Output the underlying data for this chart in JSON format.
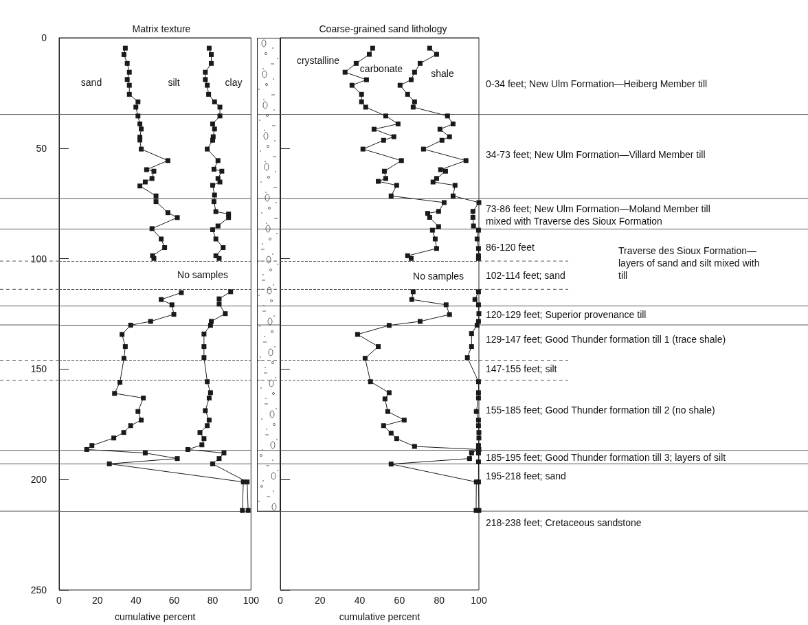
{
  "chart_data": [
    {
      "type": "line",
      "title": "Matrix texture",
      "xlabel": "cumulative percent",
      "xlim": [
        0,
        100
      ],
      "xticks": [
        0,
        20,
        40,
        60,
        80,
        100
      ],
      "ylim": [
        250,
        0
      ],
      "yticks": [
        0,
        50,
        100,
        150,
        200,
        250
      ],
      "marker": "square",
      "series": [
        {
          "color": "#1a1a1a",
          "x": [
            34.5,
            33.8,
            35.5,
            36.6,
            35.5,
            36.6,
            36.6,
            41.1,
            40.0,
            41.1,
            42.1,
            42.8,
            42.1,
            42.1,
            42.8,
            56.7,
            45.6,
            49.4,
            48.4,
            44.9,
            42.1,
            50.5,
            50.5,
            56.7,
            61.6,
            48.4,
            53.2,
            55.0,
            48.7,
            49.4,
            null,
            63.7,
            53.2,
            58.8,
            59.8,
            47.7,
            37.3,
            32.8,
            34.5,
            33.8,
            31.7,
            28.9,
            43.9,
            41.1,
            42.8,
            37.3,
            33.7,
            28.5,
            17.1,
            14.4,
            44.9,
            61.6,
            26.2,
            96.0,
            95.5
          ],
          "values": [
            4.7,
            7.6,
            11.6,
            15.6,
            18.9,
            21.5,
            25.6,
            29.0,
            31.4,
            35.4,
            39.0,
            41.3,
            45.0,
            46.3,
            50.4,
            55.6,
            59.7,
            60.4,
            63.7,
            65.3,
            67.1,
            71.6,
            74.2,
            79.2,
            81.4,
            86.4,
            91.1,
            95.0,
            98.7,
            99.9,
            null,
            115.4,
            118.5,
            120.9,
            125.2,
            128.4,
            130.1,
            134.3,
            139.8,
            145.1,
            156.0,
            161.0,
            163.1,
            169.2,
            173.1,
            175.6,
            178.7,
            181.2,
            184.6,
            186.4,
            188.0,
            190.5,
            192.9,
            201.1,
            214
          ]
        },
        {
          "color": "#1a1a1a",
          "x": [
            78.2,
            79.3,
            79.3,
            76.2,
            76.2,
            77.2,
            77.9,
            81.0,
            83.8,
            83.8,
            80.0,
            81.0,
            80.3,
            80.0,
            77.2,
            82.8,
            80.7,
            84.8,
            82.8,
            83.8,
            80.0,
            81.0,
            80.7,
            81.7,
            88.3,
            88.3,
            82.8,
            80.0,
            81.7,
            85.5,
            81.7,
            83.4,
            null,
            89.4,
            83.4,
            83.4,
            86.6,
            79.3,
            78.9,
            75.5,
            75.5,
            75.5,
            77.2,
            78.9,
            78.2,
            76.2,
            78.2,
            77.2,
            73.4,
            75.5,
            74.4,
            67.1,
            85.9,
            83.4,
            80.0,
            98.0,
            98.5
          ],
          "values": [
            4.7,
            7.6,
            11.6,
            15.6,
            18.9,
            21.5,
            25.6,
            29.0,
            31.4,
            35.4,
            39.0,
            41.3,
            44.8,
            46.4,
            50.4,
            55.6,
            59.5,
            60.4,
            63.7,
            65.3,
            66.8,
            71.2,
            74.2,
            78.7,
            79.8,
            81.4,
            85.2,
            86.9,
            91.1,
            95.0,
            98.7,
            99.9,
            null,
            115.0,
            118.2,
            120.6,
            124.9,
            128.4,
            130.2,
            134.1,
            139.8,
            144.8,
            155.7,
            160.7,
            163.1,
            168.8,
            173.1,
            175.6,
            178.7,
            181.5,
            184.3,
            186.4,
            188.0,
            190.5,
            192.9,
            201.1,
            214
          ]
        }
      ],
      "ref_lines": [
        {
          "axis": "y",
          "value": 34.7
        },
        {
          "axis": "y",
          "value": 72.8
        },
        {
          "axis": "y",
          "value": 86.6
        },
        {
          "axis": "y",
          "value": 101.1,
          "line_style": "dashed"
        },
        {
          "axis": "y",
          "value": 113.9,
          "line_style": "dashed"
        },
        {
          "axis": "y",
          "value": 121.4
        },
        {
          "axis": "y",
          "value": 130.0
        },
        {
          "axis": "y",
          "value": 146.0,
          "line_style": "dashed"
        },
        {
          "axis": "y",
          "value": 155.0,
          "line_style": "dashed"
        },
        {
          "axis": "y",
          "value": 186.8
        },
        {
          "axis": "y",
          "value": 192.9
        },
        {
          "axis": "y",
          "value": 214.3
        }
      ],
      "annotations": [
        "sand",
        "silt",
        "clay",
        "No samples"
      ]
    },
    {
      "type": "line",
      "title": "Coarse-grained sand lithology",
      "xlabel": "cumulative percent",
      "xlim": [
        0,
        100
      ],
      "xticks": [
        0,
        20,
        40,
        60,
        80,
        100
      ],
      "ylim": [
        250,
        0
      ],
      "yticks": [
        0,
        50,
        100,
        150,
        200,
        250
      ],
      "tick_labels": "x",
      "marker": "square",
      "series": [
        {
          "color": "#1a1a1a",
          "x": [
            46.5,
            44.8,
            38.2,
            32.6,
            43.4,
            36.1,
            40.9,
            40.9,
            43.0,
            53.1,
            59.3,
            47.2,
            57.2,
            52.0,
            41.6,
            61.0,
            52.4,
            53.1,
            49.3,
            58.6,
            55.8,
            82.5,
            79.7,
            74.2,
            75.2,
            79.7,
            76.6,
            78.0,
            78.7,
            64.1,
            65.9,
            null,
            66.9,
            66.2,
            83.5,
            85.2,
            70.4,
            54.8,
            38.9,
            49.3,
            42.7,
            45.4,
            54.8,
            52.7,
            54.1,
            62.4,
            52.0,
            55.8,
            58.6,
            67.6,
            99.8,
            96.3,
            95.3,
            55.8,
            98.7,
            98.6
          ],
          "values": [
            4.7,
            7.5,
            11.6,
            15.6,
            19.0,
            21.5,
            25.6,
            29.0,
            31.4,
            35.4,
            39.0,
            41.4,
            44.8,
            46.4,
            50.4,
            55.6,
            60.4,
            63.7,
            65.0,
            66.8,
            71.6,
            74.6,
            78.6,
            79.5,
            81.3,
            85.5,
            87.1,
            91.1,
            95.4,
            98.7,
            99.9,
            null,
            115.0,
            118.5,
            120.9,
            125.3,
            128.4,
            130.2,
            134.3,
            139.8,
            145.1,
            155.7,
            160.7,
            163.5,
            169.2,
            173.1,
            175.6,
            179.0,
            181.5,
            185.0,
            186.4,
            188.0,
            190.5,
            193.0,
            201.1,
            214
          ]
        },
        {
          "color": "#1a1a1a",
          "x": [
            75.2,
            78.7,
            70.4,
            67.6,
            65.9,
            60.3,
            64.1,
            67.6,
            66.9,
            84.2,
            87.0,
            80.4,
            85.2,
            81.4,
            72.1,
            93.5,
            80.7,
            83.2,
            78.7,
            76.9,
            88.0,
            87.0,
            100,
            97.0,
            97.0,
            97.3,
            99.8,
            99.1,
            99.8,
            99.8,
            99.8,
            null,
            99.8,
            98.0,
            99.8,
            100,
            99.8,
            99.1,
            96.3,
            96.3,
            94.2,
            99.8,
            99.8,
            99.8,
            98.7,
            99.8,
            99.8,
            100,
            100,
            99.8,
            100,
            99.8,
            99.8,
            99.8,
            100
          ],
          "values": [
            4.7,
            7.5,
            11.6,
            15.6,
            19.0,
            21.5,
            25.6,
            29.0,
            31.4,
            35.4,
            39.0,
            41.4,
            44.8,
            46.4,
            50.4,
            55.6,
            59.7,
            60.4,
            63.7,
            65.3,
            66.8,
            71.6,
            74.6,
            78.6,
            81.3,
            85.2,
            87.1,
            91.1,
            95.4,
            98.7,
            99.9,
            null,
            115.0,
            118.5,
            120.9,
            124.9,
            128.4,
            130.1,
            133.9,
            139.8,
            144.8,
            155.7,
            160.7,
            163.1,
            169.2,
            173.1,
            175.6,
            178.7,
            181.2,
            184.6,
            186.4,
            188.0,
            192.0,
            201.1,
            214
          ]
        }
      ],
      "ref_lines": [
        {
          "axis": "y",
          "value": 34.7
        },
        {
          "axis": "y",
          "value": 72.8
        },
        {
          "axis": "y",
          "value": 86.6
        },
        {
          "axis": "y",
          "value": 101.1,
          "line_style": "dashed"
        },
        {
          "axis": "y",
          "value": 113.9,
          "line_style": "dashed"
        },
        {
          "axis": "y",
          "value": 121.4
        },
        {
          "axis": "y",
          "value": 130.0
        },
        {
          "axis": "y",
          "value": 146.0,
          "line_style": "dashed"
        },
        {
          "axis": "y",
          "value": 155.0,
          "line_style": "dashed"
        },
        {
          "axis": "y",
          "value": 186.8
        },
        {
          "axis": "y",
          "value": 192.9
        },
        {
          "axis": "y",
          "value": 214.3
        }
      ],
      "annotations": [
        "crystalline",
        "carbonate",
        "shale",
        "No samples",
        "0-34 feet; New Ulm Formation—Heiberg Member till",
        "34-73 feet; New Ulm Formation—Villard Member till",
        "73-86 feet; New Ulm Formation—Moland Member till\nmixed with Traverse des Sioux Formation",
        "86-120 feet",
        "102-114 feet; sand",
        "Traverse des Sioux Formation—\nlayers of sand and silt mixed with\ntill",
        "120-129 feet; Superior provenance till",
        "129-147 feet; Good Thunder formation till 1 (trace shale)",
        "147-155 feet; silt",
        "155-185 feet; Good Thunder formation till 2 (no shale)",
        "185-195 feet; Good Thunder formation till 3; layers of silt",
        "195-218 feet; sand",
        "218-238 feet; Cretaceous sandstone"
      ]
    }
  ]
}
